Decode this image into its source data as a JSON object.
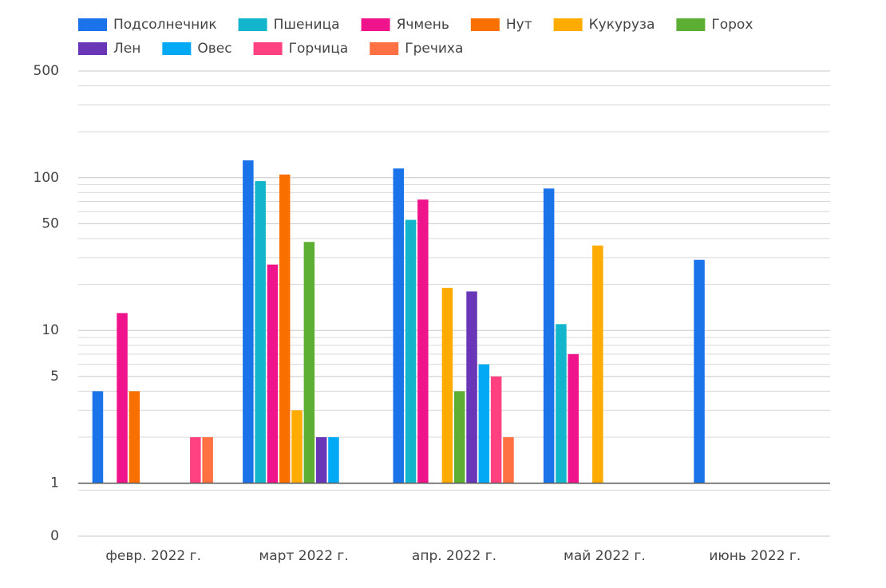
{
  "chart_data": {
    "type": "bar",
    "log_scale": true,
    "grid": true,
    "legend": "top",
    "categories": [
      "февр. 2022 г.",
      "март 2022 г.",
      "апр. 2022 г.",
      "май 2022 г.",
      "июнь 2022 г."
    ],
    "series": [
      {
        "name": "Подсолнечник",
        "color": "#1a73e8",
        "values": [
          4,
          130,
          115,
          85,
          29
        ]
      },
      {
        "name": "Пшеница",
        "color": "#12b5cb",
        "values": [
          null,
          95,
          53,
          11,
          null
        ]
      },
      {
        "name": "Ячмень",
        "color": "#f0148c",
        "values": [
          13,
          27,
          72,
          7,
          null
        ]
      },
      {
        "name": "Нут",
        "color": "#fa7000",
        "values": [
          4,
          105,
          null,
          null,
          null
        ]
      },
      {
        "name": "Кукуруза",
        "color": "#ffab00",
        "values": [
          null,
          3,
          19,
          36,
          null
        ]
      },
      {
        "name": "Горох",
        "color": "#5daf34",
        "values": [
          null,
          38,
          4,
          null,
          null
        ]
      },
      {
        "name": "Лен",
        "color": "#6a36b8",
        "values": [
          null,
          2,
          18,
          null,
          null
        ]
      },
      {
        "name": "Овес",
        "color": "#03a9f4",
        "values": [
          null,
          2,
          6,
          null,
          null
        ]
      },
      {
        "name": "Горчица",
        "color": "#ff4081",
        "values": [
          2,
          null,
          5,
          null,
          null
        ]
      },
      {
        "name": "Гречиха",
        "color": "#ff7043",
        "values": [
          2,
          null,
          2,
          null,
          null
        ]
      }
    ],
    "ylim": [
      0.45,
      500
    ],
    "yticks": [
      {
        "value": 0.45,
        "label": "0"
      },
      1,
      5,
      10,
      50,
      100,
      500
    ],
    "yminorticks": [
      0.9,
      2,
      3,
      4,
      6,
      7,
      8,
      9,
      20,
      30,
      40,
      60,
      70,
      80,
      90,
      200,
      300,
      400
    ]
  }
}
